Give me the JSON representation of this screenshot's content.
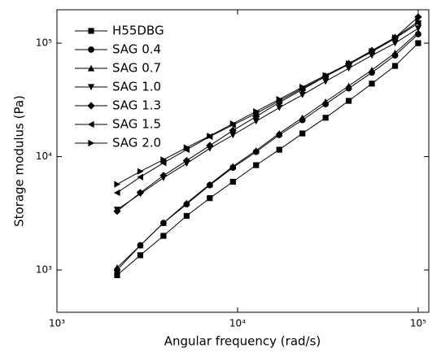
{
  "chart_data": {
    "type": "line",
    "x_label": "Angular frequency (rad/s)",
    "y_label": "Storage modulus (Pa)",
    "x_log": true,
    "y_log": true,
    "xlim": [
      1000,
      114500
    ],
    "ylim": [
      424,
      197000
    ],
    "xticks": [
      {
        "value": 1000,
        "label": "10³"
      },
      {
        "value": 10000,
        "label": "10⁴"
      },
      {
        "value": 100000,
        "label": "10⁵"
      }
    ],
    "yticks": [
      {
        "value": 1000,
        "label": "10³"
      },
      {
        "value": 10000,
        "label": "10⁴"
      },
      {
        "value": 100000,
        "label": "10⁵"
      }
    ],
    "legend": "upper-left",
    "x": [
      2154,
      2894,
      3888,
      5223,
      7017,
      9427,
      12665,
      17015,
      22859,
      30710,
      41258,
      55429,
      74467,
      100000
    ],
    "series": [
      {
        "name": "H55DBG",
        "color": "#000000",
        "marker": "square",
        "values": [
          900,
          1350,
          2000,
          3000,
          4300,
          6000,
          8400,
          11500,
          16000,
          22000,
          31000,
          44000,
          63000,
          100000
        ]
      },
      {
        "name": "SAG 0.4",
        "color": "#000000",
        "marker": "circle",
        "values": [
          1000,
          1650,
          2600,
          3800,
          5600,
          8000,
          11000,
          15500,
          21000,
          29000,
          40000,
          55000,
          78000,
          120000
        ]
      },
      {
        "name": "SAG 0.7",
        "color": "#000000",
        "marker": "triangle-up",
        "values": [
          1050,
          1650,
          2600,
          3900,
          5700,
          8200,
          11300,
          16000,
          22000,
          30500,
          42000,
          58000,
          82000,
          125000
        ]
      },
      {
        "name": "SAG 1.0",
        "color": "#000000",
        "marker": "triangle-down",
        "values": [
          3400,
          4700,
          6500,
          8700,
          11800,
          15500,
          20500,
          27000,
          35000,
          46000,
          60000,
          78000,
          100000,
          135000
        ]
      },
      {
        "name": "SAG 1.3",
        "color": "#000000",
        "marker": "diamond",
        "values": [
          3300,
          4800,
          6800,
          9200,
          12500,
          17000,
          22500,
          30000,
          39000,
          51000,
          66000,
          86000,
          112000,
          170000
        ]
      },
      {
        "name": "SAG 1.5",
        "color": "#000000",
        "marker": "triangle-left",
        "values": [
          4800,
          6600,
          8800,
          11500,
          15000,
          19000,
          24000,
          31000,
          40000,
          51000,
          65000,
          84000,
          110000,
          150000
        ]
      },
      {
        "name": "SAG 2.0",
        "color": "#000000",
        "marker": "triangle-right",
        "values": [
          5700,
          7400,
          9400,
          12000,
          15200,
          19500,
          25000,
          32000,
          41000,
          52000,
          66000,
          85000,
          112000,
          155000
        ]
      }
    ]
  }
}
